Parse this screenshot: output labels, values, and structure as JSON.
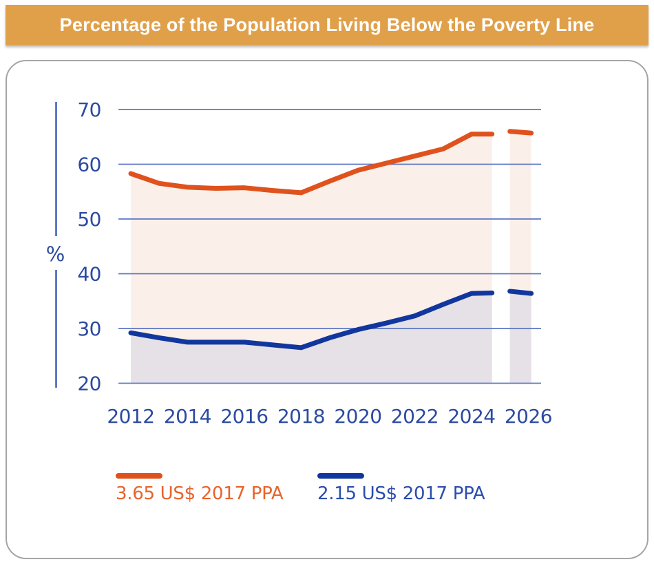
{
  "title_bar": {
    "text": "Percentage of the Population Living Below the Poverty Line",
    "bg_color": "#E0A04A",
    "text_color": "#FFFFFF"
  },
  "chart_data": {
    "type": "area",
    "title": "Percentage of the Population Living Below the Poverty Line",
    "xlabel": "",
    "ylabel": "%",
    "ylim": [
      20,
      70
    ],
    "grid": true,
    "legend_position": "bottom",
    "yticks": [
      70,
      60,
      50,
      40,
      30,
      20
    ],
    "xticks": [
      2012,
      2014,
      2016,
      2018,
      2020,
      2022,
      2024,
      2026
    ],
    "axis_color": "#3D5FB5",
    "gridline_color": "#5C76C2",
    "tick_label_color": "#2B4AA0",
    "note": "solid lines 2012-2025; detached short segments at right are projections for 2026",
    "series": [
      {
        "name": "3.65 US$ 2017 PPA",
        "line_color": "#E0521D",
        "fill_color": "#FBF0E9",
        "label_color": "#E8632C",
        "x": [
          2012,
          2013,
          2014,
          2015,
          2016,
          2017,
          2018,
          2019,
          2020,
          2021,
          2022,
          2023,
          2024,
          2024.72
        ],
        "values": [
          58.3,
          56.5,
          55.8,
          55.6,
          55.7,
          55.2,
          54.8,
          56.9,
          58.9,
          60.2,
          61.5,
          62.8,
          65.5,
          65.5
        ],
        "projection_x": [
          2025.35,
          2026.1
        ],
        "projection_values": [
          66.0,
          65.7
        ]
      },
      {
        "name": "2.15 US$ 2017 PPA",
        "line_color": "#11379E",
        "fill_color": "#E5E1E7",
        "label_color": "#2B4DAC",
        "x": [
          2012,
          2013,
          2014,
          2015,
          2016,
          2017,
          2018,
          2019,
          2020,
          2021,
          2022,
          2023,
          2024,
          2024.72
        ],
        "values": [
          29.2,
          28.3,
          27.5,
          27.5,
          27.5,
          27.0,
          26.5,
          28.3,
          29.8,
          31.0,
          32.3,
          34.4,
          36.4,
          36.5
        ],
        "projection_x": [
          2025.35,
          2026.1
        ],
        "projection_values": [
          36.8,
          36.4
        ]
      }
    ]
  }
}
